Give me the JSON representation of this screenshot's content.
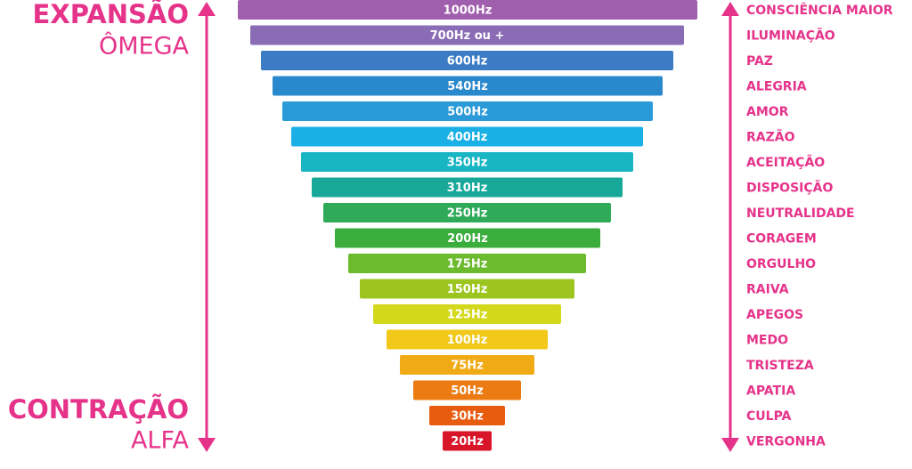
{
  "left_top": {
    "title": "EXPANSÃO",
    "subtitle": "ÔMEGA"
  },
  "left_bottom": {
    "title": "CONTRAÇÃO",
    "subtitle": "ALFA"
  },
  "levels": [
    {
      "frequency": "1000Hz",
      "state": "CONSCIÊNCIA MAIOR"
    },
    {
      "frequency": "700Hz ou +",
      "state": "ILUMINAÇÃO"
    },
    {
      "frequency": "600Hz",
      "state": "PAZ"
    },
    {
      "frequency": "540Hz",
      "state": "ALEGRIA"
    },
    {
      "frequency": "500Hz",
      "state": "AMOR"
    },
    {
      "frequency": "400Hz",
      "state": "RAZÃO"
    },
    {
      "frequency": "350Hz",
      "state": "ACEITAÇÃO"
    },
    {
      "frequency": "310Hz",
      "state": "DISPOSIÇÃO"
    },
    {
      "frequency": "250Hz",
      "state": "NEUTRALIDADE"
    },
    {
      "frequency": "200Hz",
      "state": "CORAGEM"
    },
    {
      "frequency": "175Hz",
      "state": "ORGULHO"
    },
    {
      "frequency": "150Hz",
      "state": "RAIVA"
    },
    {
      "frequency": "125Hz",
      "state": "APEGOS"
    },
    {
      "frequency": "100Hz",
      "state": "MEDO"
    },
    {
      "frequency": "75Hz",
      "state": "TRISTEZA"
    },
    {
      "frequency": "50Hz",
      "state": "APATIA"
    },
    {
      "frequency": "30Hz",
      "state": "CULPA"
    },
    {
      "frequency": "20Hz",
      "state": "VERGONHA"
    }
  ]
}
